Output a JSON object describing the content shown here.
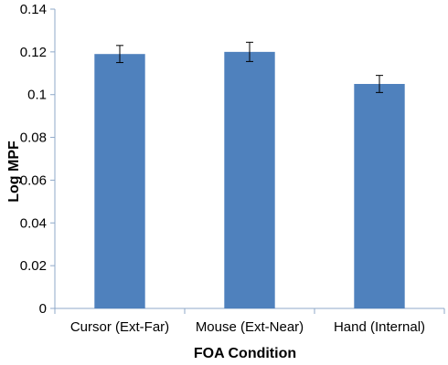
{
  "chart_data": {
    "type": "bar",
    "title": "",
    "xlabel": "FOA Condition",
    "ylabel": "Log MPF",
    "categories": [
      "Cursor (Ext-Far)",
      "Mouse (Ext-Near)",
      "Hand (Internal)"
    ],
    "values": [
      0.119,
      0.12,
      0.105
    ],
    "error": [
      0.004,
      0.0045,
      0.004
    ],
    "ylim": [
      0,
      0.14
    ],
    "yticks": [
      0,
      0.02,
      0.04,
      0.06,
      0.08,
      0.1,
      0.12,
      0.14
    ],
    "ytick_labels": [
      "0",
      "0.02",
      "0.04",
      "0.06",
      "0.08",
      "0.1",
      "0.12",
      "0.14"
    ],
    "grid": false,
    "legend": "none",
    "bar_color": "#4f81bd",
    "axis_color": "#8fa9c9"
  }
}
